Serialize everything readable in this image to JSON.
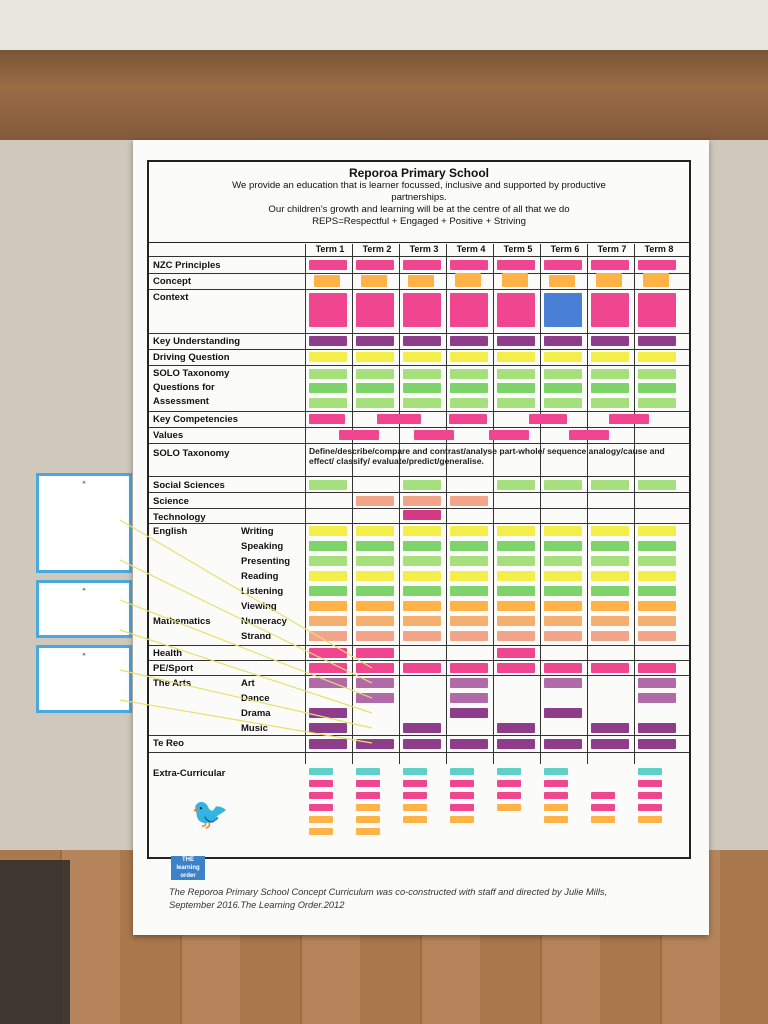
{
  "poster": {
    "title": "Reporoa Primary School",
    "line1": "We provide an education that is learner focussed, inclusive and supported by productive",
    "line2": "partnerships.",
    "line3": "Our children’s growth and learning will be at the centre of all that we do",
    "line4": "REPS=Respectful + Engaged + Positive + Striving",
    "terms": [
      "Term 1",
      "Term 2",
      "Term 3",
      "Term 4",
      "Term 5",
      "Term 6",
      "Term 7",
      "Term 8"
    ],
    "rows": {
      "nzc": "NZC Principles",
      "concept": "Concept",
      "context": "Context",
      "key_understanding": "Key Understanding",
      "driving_question": "Driving Question",
      "solo_q1": "SOLO Taxonomy",
      "solo_q2": "Questions for",
      "solo_q3": "Assessment",
      "key_competencies": "Key Competencies",
      "values": "Values",
      "solo_taxonomy": "SOLO Taxonomy",
      "social_sciences": "Social Sciences",
      "science": "Science",
      "technology": "Technology",
      "english": "English",
      "writing": "Writing",
      "speaking": "Speaking",
      "presenting": "Presenting",
      "reading": "Reading",
      "listening": "Listening",
      "viewing": "Viewing",
      "mathematics": "Mathematics",
      "numeracy": "Numeracy",
      "strand": "Strand",
      "health": "Health",
      "pe_sport": "PE/Sport",
      "the_arts": "The Arts",
      "art": "Art",
      "dance": "Dance",
      "drama": "Drama",
      "music": "Music",
      "te_reo": "Te Reo",
      "extra": "Extra-Curricular"
    },
    "solo_text": "Define/describe/compare and contrast/analyse part-whole/ sequence analogy/cause and effect/ classify/ evaluate/predict/generalise.",
    "footer1": "The Reporoa Primary School Concept Curriculum was co-constructed with staff and directed by Julie Mills,",
    "footer2": "September 2016.The Learning Order.2012"
  }
}
